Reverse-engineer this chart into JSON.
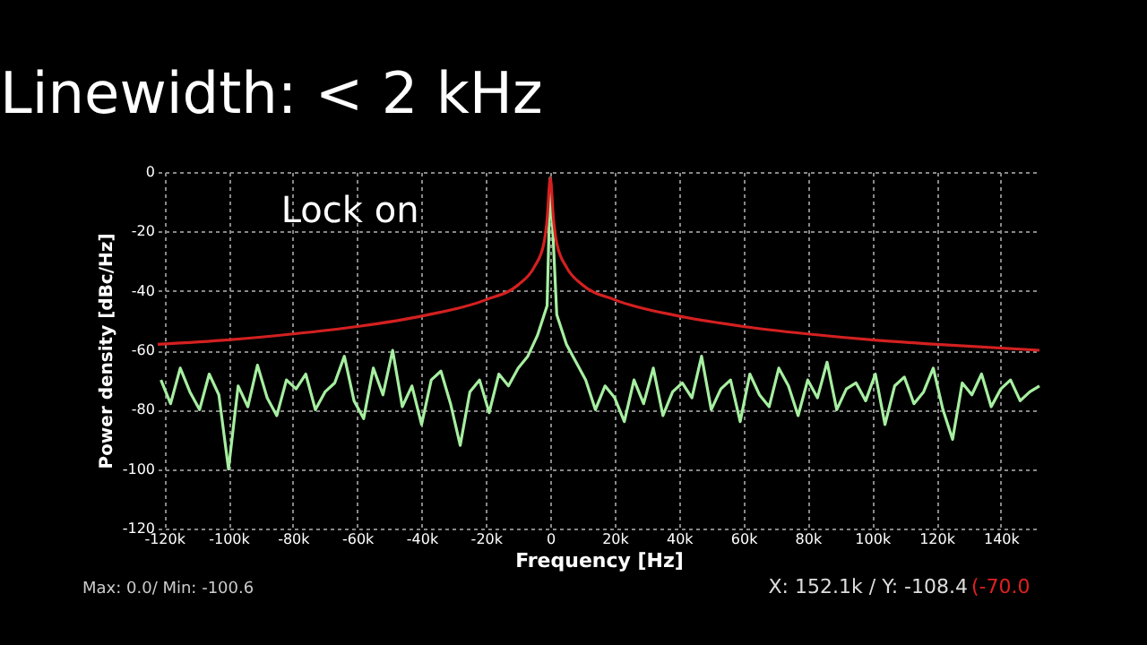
{
  "chart_data": {
    "type": "line",
    "title": "Linewidth: < 2 kHz",
    "xlabel": "Frequency [Hz]",
    "ylabel": "Power density [dBc/Hz]",
    "annotations": [
      "Lock  on",
      "Max: 0.0/ Min: -100.6",
      "X: 152.1k / Y: -108.4",
      "(-70.0"
    ],
    "xlim": [
      -122000,
      152000
    ],
    "ylim": [
      -120,
      0
    ],
    "xticks": [
      {
        "value": -120000,
        "label": "-120k"
      },
      {
        "value": -100000,
        "label": "-100k"
      },
      {
        "value": -80000,
        "label": "-80k"
      },
      {
        "value": -60000,
        "label": "-60k"
      },
      {
        "value": -40000,
        "label": "-40k"
      },
      {
        "value": -20000,
        "label": "-20k"
      },
      0,
      {
        "value": 20000,
        "label": "20k"
      },
      {
        "value": 40000,
        "label": "40k"
      },
      {
        "value": 60000,
        "label": "60k"
      },
      {
        "value": 80000,
        "label": "80k"
      },
      {
        "value": 100000,
        "label": "100k"
      },
      {
        "value": 120000,
        "label": "120k"
      },
      {
        "value": 140000,
        "label": "140k"
      }
    ],
    "yticks": [
      0,
      -20,
      -40,
      -60,
      -80,
      -100,
      -120
    ],
    "grid": true,
    "line_style": "solid",
    "series": [
      {
        "color": "#a6eea0",
        "x": [
          -121000,
          -118000,
          -115000,
          -112000,
          -109000,
          -106000,
          -103000,
          -100000,
          -97000,
          -94000,
          -91000,
          -88000,
          -85000,
          -82000,
          -79000,
          -76000,
          -73000,
          -70000,
          -67000,
          -64000,
          -61000,
          -58000,
          -55000,
          -52000,
          -49000,
          -46000,
          -43000,
          -40000,
          -37000,
          -34000,
          -31000,
          -28000,
          -25000,
          -22000,
          -19000,
          -16000,
          -13000,
          -10000,
          -7000,
          -4000,
          -1000,
          0,
          2000,
          5000,
          8000,
          11000,
          14000,
          17000,
          20000,
          23000,
          26000,
          29000,
          32000,
          35000,
          38000,
          41000,
          44000,
          47000,
          50000,
          53000,
          56000,
          59000,
          62000,
          65000,
          68000,
          71000,
          74000,
          77000,
          80000,
          83000,
          86000,
          89000,
          92000,
          95000,
          98000,
          101000,
          104000,
          107000,
          110000,
          113000,
          116000,
          119000,
          122000,
          125000,
          128000,
          131000,
          134000,
          137000,
          140000,
          143000,
          146000,
          149000,
          152000
        ],
        "values": [
          -70,
          -78,
          -66,
          -74,
          -80,
          -68,
          -75,
          -100,
          -72,
          -79,
          -65,
          -76,
          -82,
          -70,
          -73,
          -68,
          -80,
          -74,
          -71,
          -62,
          -77,
          -83,
          -66,
          -75,
          -60,
          -79,
          -72,
          -85,
          -70,
          -67,
          -78,
          -92,
          -74,
          -70,
          -81,
          -68,
          -72,
          -66,
          -62,
          -55,
          -45,
          -2,
          -48,
          -58,
          -64,
          -70,
          -80,
          -72,
          -76,
          -84,
          -70,
          -78,
          -66,
          -82,
          -74,
          -71,
          -76,
          -62,
          -80,
          -73,
          -70,
          -84,
          -68,
          -75,
          -79,
          -66,
          -72,
          -82,
          -70,
          -76,
          -64,
          -80,
          -73,
          -71,
          -77,
          -68,
          -85,
          -72,
          -69,
          -78,
          -74,
          -66,
          -80,
          -90,
          -71,
          -75,
          -68,
          -79,
          -73,
          -70,
          -77,
          -74,
          -72
        ]
      },
      {
        "color": "#d42020",
        "x": [
          -122000,
          -100000,
          -80000,
          -60000,
          -40000,
          -20000,
          -10000,
          -5000,
          -2000,
          -1000,
          0,
          1000,
          2000,
          5000,
          10000,
          20000,
          40000,
          60000,
          80000,
          100000,
          120000,
          152000
        ],
        "values": [
          -58,
          -56.5,
          -54.5,
          -52,
          -48.5,
          -43,
          -38,
          -32,
          -24,
          -16,
          -2,
          -16,
          -24,
          -32,
          -38,
          -43,
          -48.5,
          -52,
          -54.5,
          -56.5,
          -58,
          -60
        ]
      }
    ]
  }
}
